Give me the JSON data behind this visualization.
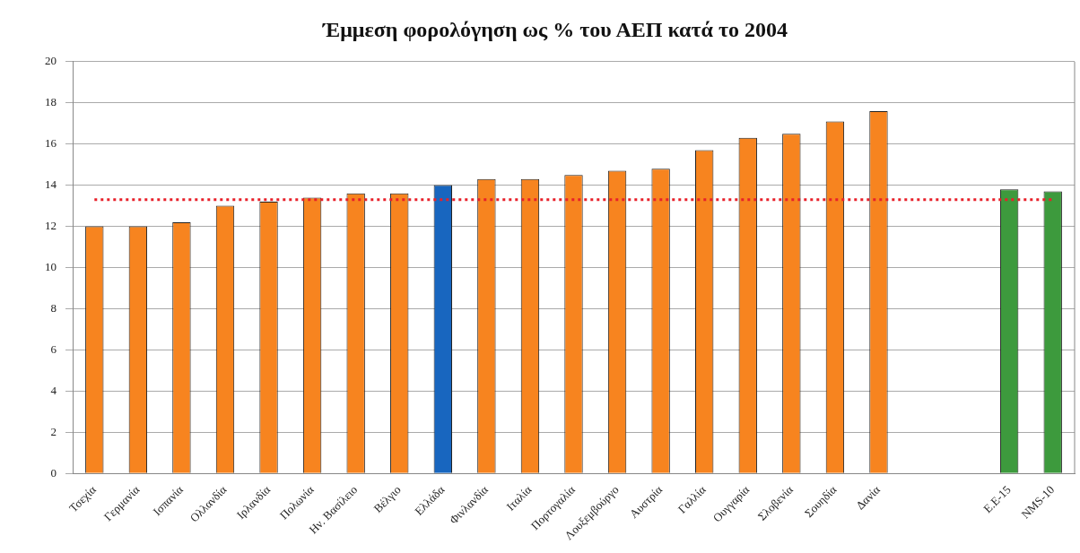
{
  "chart_data": {
    "type": "bar",
    "title": "Έμμεση φορολόγηση ως % του ΑΕΠ κατά το 2004",
    "categories": [
      "Τσεχία",
      "Γερμανία",
      "Ισπανία",
      "Ολλανδία",
      "Ιρλανδία",
      "Πολωνία",
      "Ην. Βασίλειο",
      "Βέλγιο",
      "Ελλάδα",
      "Φινλανδία",
      "Ιταλία",
      "Πορτογαλία",
      "Λουξεμβούργο",
      "Αυστρία",
      "Γαλλία",
      "Ουγγαρία",
      "Σλοβενία",
      "Σουηδία",
      "Δανία",
      null,
      null,
      "Ε.Ε-15",
      "NMS-10"
    ],
    "values": [
      12.0,
      12.0,
      12.2,
      13.0,
      13.2,
      13.4,
      13.6,
      13.6,
      14.0,
      14.3,
      14.3,
      14.5,
      14.7,
      14.8,
      15.7,
      16.3,
      16.5,
      17.1,
      17.6,
      null,
      null,
      13.8,
      13.7
    ],
    "colors": [
      "#f7841f",
      "#f7841f",
      "#f7841f",
      "#f7841f",
      "#f7841f",
      "#f7841f",
      "#f7841f",
      "#f7841f",
      "#1866bf",
      "#f7841f",
      "#f7841f",
      "#f7841f",
      "#f7841f",
      "#f7841f",
      "#f7841f",
      "#f7841f",
      "#f7841f",
      "#f7841f",
      "#f7841f",
      "#f7841f",
      "#f7841f",
      "#3d9a3d",
      "#3d9a3d"
    ],
    "ylim": [
      0,
      20
    ],
    "yticks": [
      0,
      2,
      4,
      6,
      8,
      10,
      12,
      14,
      16,
      18,
      20
    ],
    "grid": "y",
    "ref_lines": [
      {
        "axis": "y",
        "value": 13.3,
        "color": "#e8202a",
        "line_style": "dotted"
      }
    ]
  }
}
